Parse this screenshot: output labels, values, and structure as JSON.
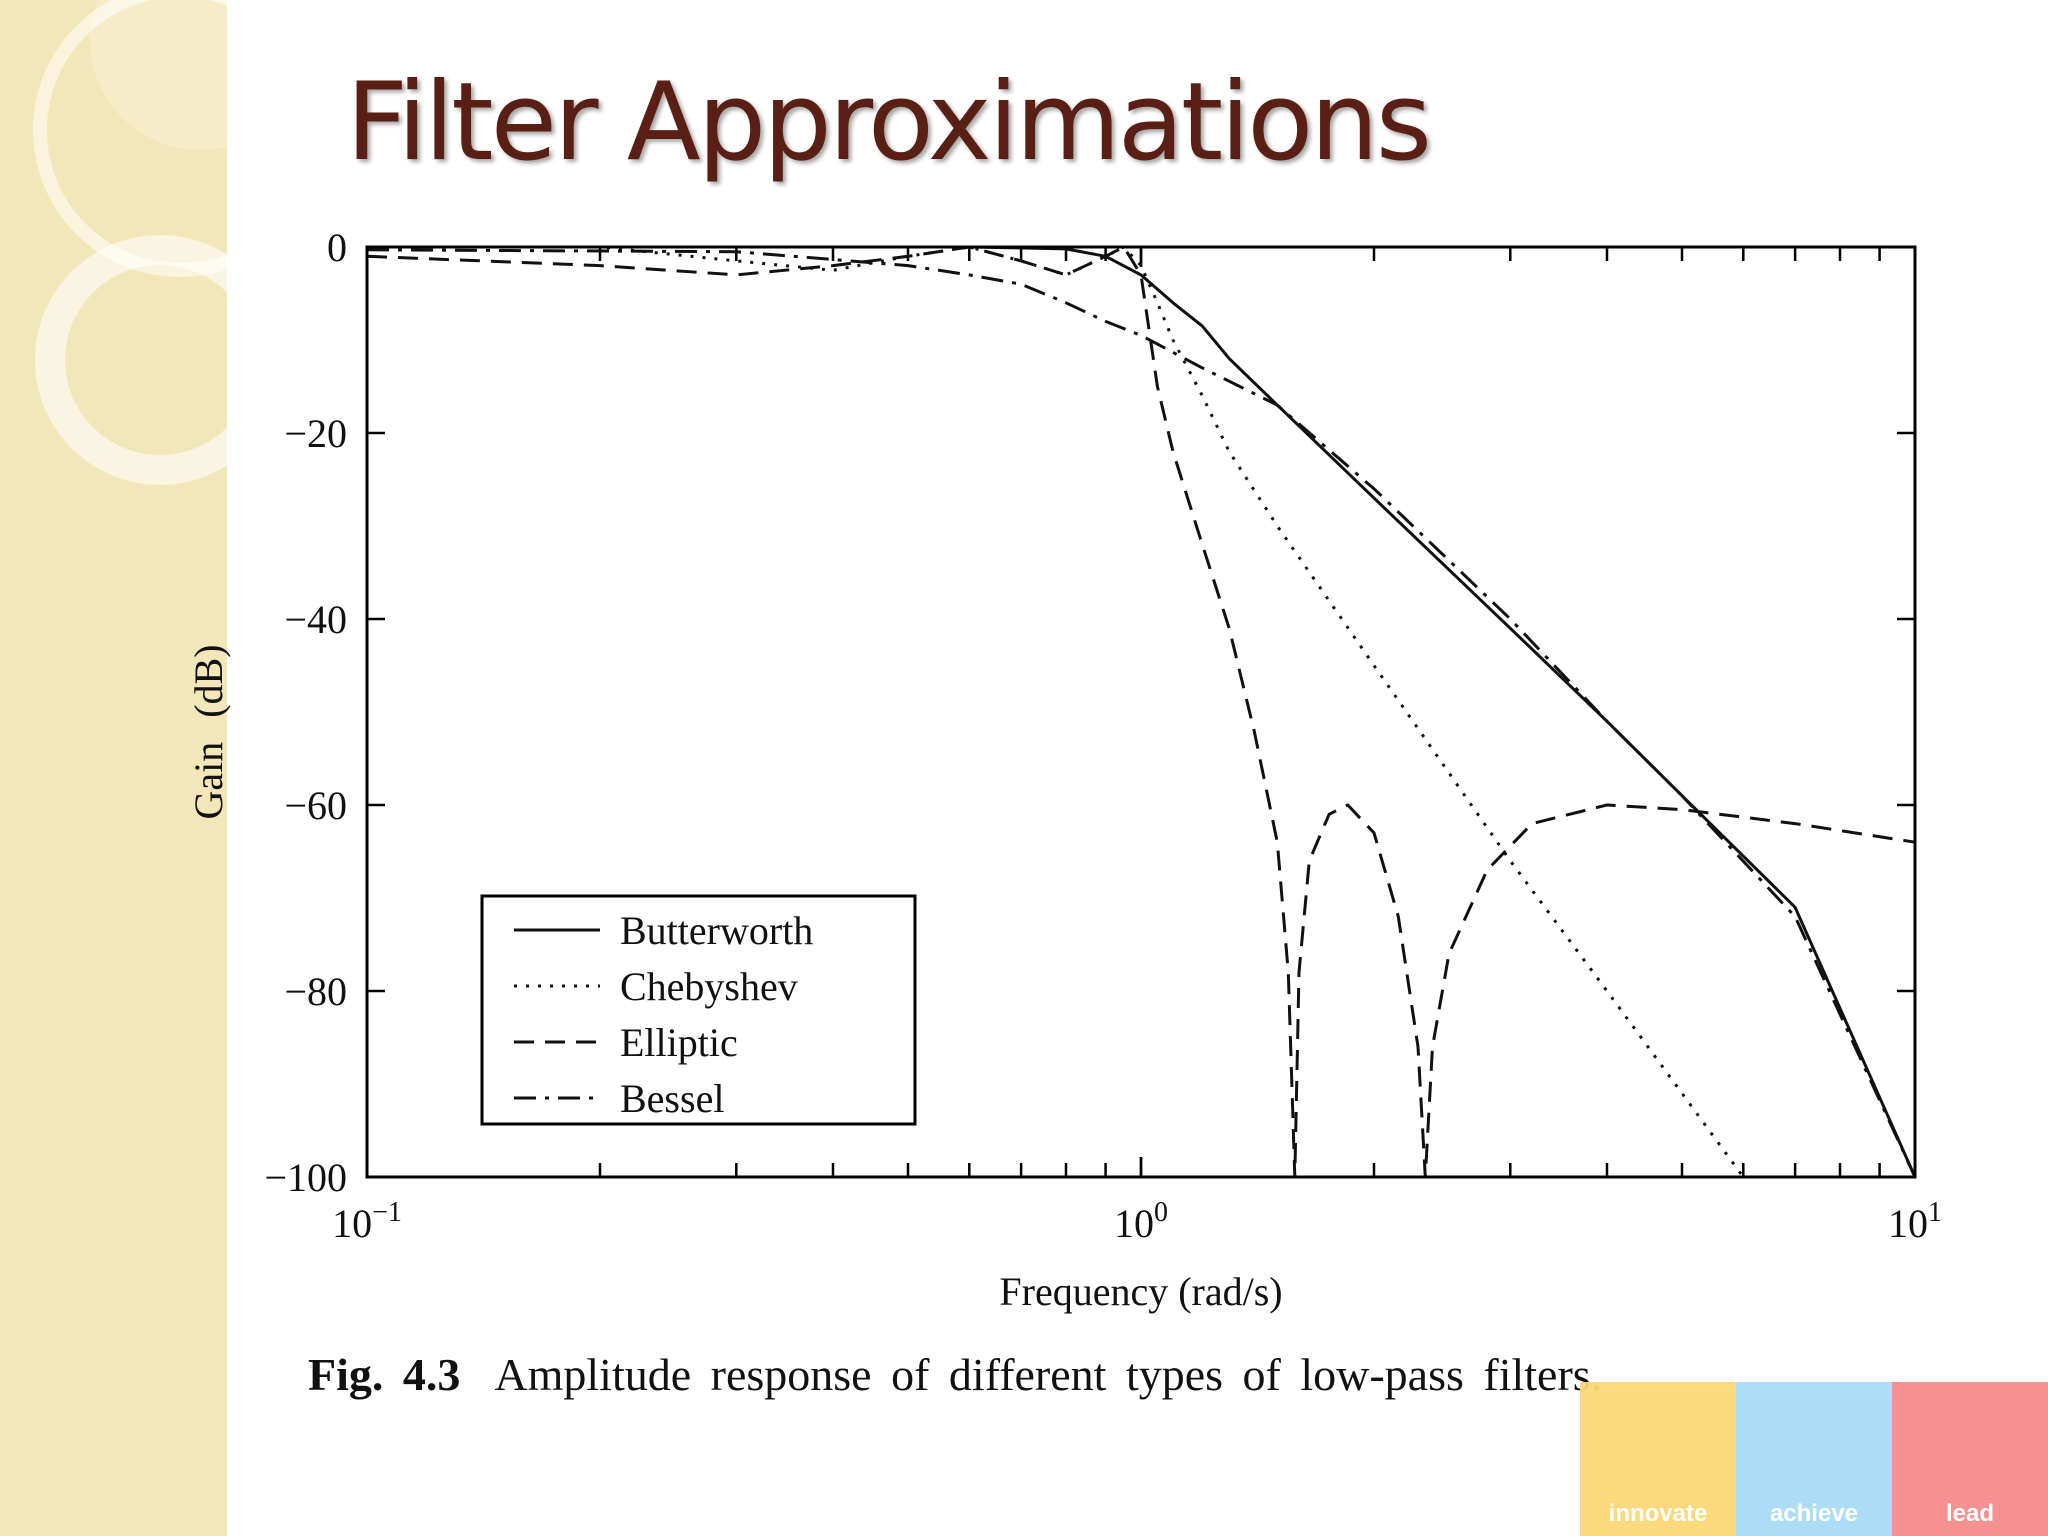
{
  "slide": {
    "title": "Filter Approximations",
    "caption_fig": "Fig. 4.3",
    "caption_text": "Amplitude response of different types of low-pass filters.",
    "brand": [
      {
        "label": "innovate",
        "color": "#fcd876"
      },
      {
        "label": "achieve",
        "color": "#a9dcf4"
      },
      {
        "label": "lead",
        "color": "#f68c8c"
      }
    ],
    "sidebar_color": "#f3e6b9",
    "title_color": "#5a1f14"
  },
  "chart_data": {
    "type": "line",
    "title": "",
    "xlabel": "Frequency (rad/s)",
    "ylabel": "Gain (dB)",
    "x_scale": "log",
    "xlim": [
      0.1,
      10
    ],
    "ylim": [
      -100,
      0
    ],
    "x_ticks": [
      {
        "base": "10",
        "exp": "−1",
        "value": 0.1
      },
      {
        "base": "10",
        "exp": "0",
        "value": 1
      },
      {
        "base": "10",
        "exp": "1",
        "value": 10
      }
    ],
    "y_ticks": [
      {
        "label": "0",
        "value": 0
      },
      {
        "label": "−20",
        "value": -20
      },
      {
        "label": "−40",
        "value": -40
      },
      {
        "label": "−60",
        "value": -60
      },
      {
        "label": "−80",
        "value": -80
      },
      {
        "label": "−100",
        "value": -100
      }
    ],
    "grid": false,
    "legend_position": "bottom-left",
    "series": [
      {
        "name": "Butterworth",
        "dash": "solid",
        "x": [
          0.1,
          0.3,
          0.6,
          0.8,
          0.9,
          1.0,
          1.1,
          1.2,
          1.3,
          1.5,
          2,
          3,
          4,
          5,
          7,
          10
        ],
        "y": [
          0,
          0,
          0,
          -0.2,
          -1,
          -3,
          -6,
          -8.5,
          -12,
          -17,
          -27,
          -41,
          -51,
          -59,
          -71,
          -100
        ]
      },
      {
        "name": "Chebyshev",
        "dash": "dotted",
        "x": [
          0.1,
          0.2,
          0.3,
          0.4,
          0.5,
          0.6,
          0.7,
          0.8,
          0.9,
          0.95,
          1.0,
          1.05,
          1.1,
          1.2,
          1.3,
          1.5,
          2,
          3,
          4,
          5,
          6
        ],
        "y": [
          0,
          0,
          -1.5,
          -2.5,
          -1,
          0,
          -1.5,
          -3,
          -1,
          0,
          -2,
          -6,
          -10,
          -16,
          -22,
          -30,
          -45,
          -66,
          -80,
          -91,
          -100
        ]
      },
      {
        "name": "Elliptic",
        "dash": "dashed",
        "x": [
          0.1,
          0.2,
          0.3,
          0.4,
          0.5,
          0.6,
          0.7,
          0.8,
          0.9,
          0.95,
          1.0,
          1.05,
          1.1,
          1.2,
          1.3,
          1.4,
          1.5,
          1.55,
          1.58,
          1.6,
          1.65,
          1.75,
          1.85,
          2.0,
          2.15,
          2.28,
          2.33,
          2.38,
          2.5,
          2.8,
          3.2,
          4,
          5,
          7,
          10
        ],
        "y": [
          -1,
          -2,
          -3,
          -2,
          -1,
          0,
          -1.5,
          -3,
          -1,
          0,
          -3,
          -15,
          -22,
          -32,
          -41,
          -52,
          -64,
          -78,
          -100,
          -78,
          -66,
          -61,
          -60,
          -63,
          -72,
          -86,
          -100,
          -86,
          -76,
          -67,
          -62,
          -60,
          -60.5,
          -62,
          -64
        ]
      },
      {
        "name": "Bessel",
        "dash": "dashdot",
        "x": [
          0.1,
          0.3,
          0.5,
          0.6,
          0.7,
          0.8,
          0.9,
          1.0,
          1.2,
          1.5,
          2,
          3,
          4,
          5,
          7,
          10
        ],
        "y": [
          -0.3,
          -0.5,
          -2,
          -3,
          -4,
          -6,
          -8,
          -9.5,
          -13,
          -17,
          -26,
          -40,
          -51,
          -59,
          -72,
          -100
        ]
      }
    ]
  }
}
